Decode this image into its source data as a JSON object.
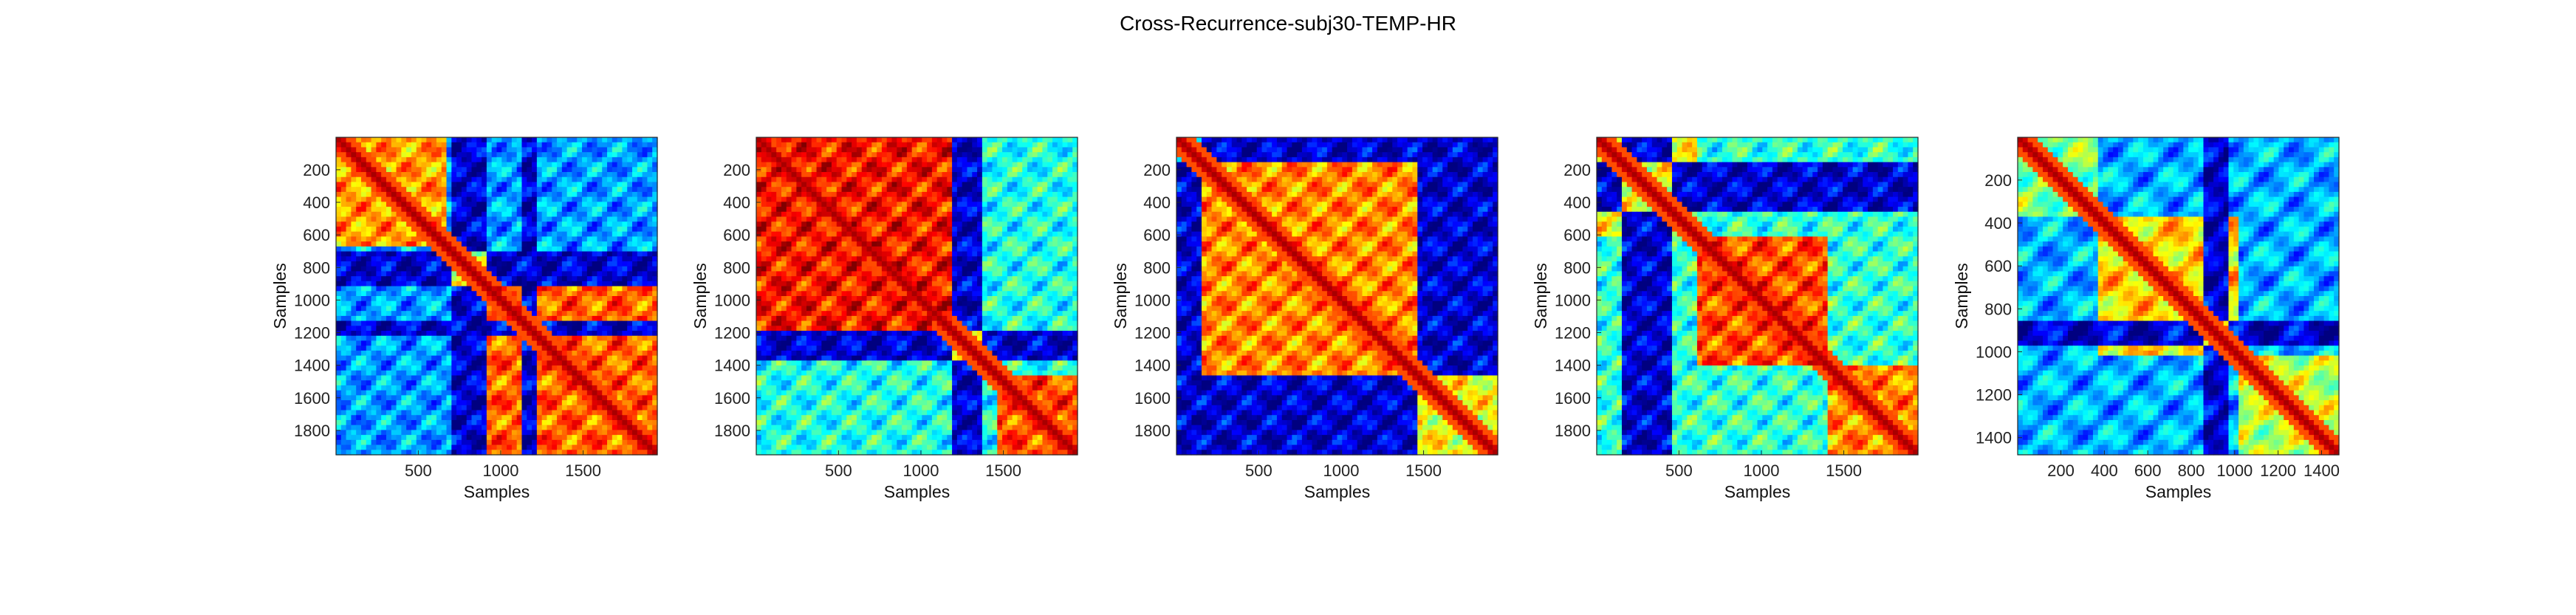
{
  "figure": {
    "title": "Cross-Recurrence-subj30-TEMP-HR"
  },
  "chart_data": [
    {
      "type": "heatmap",
      "xlabel": "Samples",
      "ylabel": "Samples",
      "xlim": [
        1,
        1950
      ],
      "ylim": [
        1,
        1950
      ],
      "x_ticks": [
        500,
        1000,
        1500
      ],
      "y_ticks": [
        200,
        400,
        600,
        800,
        1000,
        1200,
        1400,
        1600,
        1800
      ],
      "colormap": "jet",
      "blocks": [
        {
          "from": 0,
          "to": 650,
          "level": 0.72
        },
        {
          "from": 650,
          "to": 900,
          "level": 0.55
        },
        {
          "from": 900,
          "to": 1950,
          "level": 0.78
        }
      ],
      "low_bands": [
        [
          700,
          900
        ],
        [
          1100,
          1200
        ]
      ],
      "background_level": 0.28
    },
    {
      "type": "heatmap",
      "xlabel": "Samples",
      "ylabel": "Samples",
      "xlim": [
        1,
        1950
      ],
      "ylim": [
        1,
        1950
      ],
      "x_ticks": [
        500,
        1000,
        1500
      ],
      "y_ticks": [
        200,
        400,
        600,
        800,
        1000,
        1200,
        1400,
        1600,
        1800
      ],
      "colormap": "jet",
      "blocks": [
        {
          "from": 0,
          "to": 1170,
          "level": 0.86
        },
        {
          "from": 1170,
          "to": 1450,
          "level": 0.6
        },
        {
          "from": 1450,
          "to": 1950,
          "level": 0.8
        }
      ],
      "low_bands": [
        [
          1170,
          1370
        ]
      ],
      "background_level": 0.4
    },
    {
      "type": "heatmap",
      "xlabel": "Samples",
      "ylabel": "Samples",
      "xlim": [
        1,
        1950
      ],
      "ylim": [
        1,
        1950
      ],
      "x_ticks": [
        500,
        1000,
        1500
      ],
      "y_ticks": [
        200,
        400,
        600,
        800,
        1000,
        1200,
        1400,
        1600,
        1800
      ],
      "colormap": "jet",
      "blocks": [
        {
          "from": 150,
          "to": 1450,
          "level": 0.74
        },
        {
          "from": 1450,
          "to": 1950,
          "level": 0.62
        }
      ],
      "low_bands": [
        [
          1450,
          1950
        ],
        [
          0,
          150
        ]
      ],
      "background_level": 0.38
    },
    {
      "type": "heatmap",
      "xlabel": "Samples",
      "ylabel": "Samples",
      "xlim": [
        1,
        1950
      ],
      "ylim": [
        1,
        1950
      ],
      "x_ticks": [
        500,
        1000,
        1500
      ],
      "y_ticks": [
        200,
        400,
        600,
        800,
        1000,
        1200,
        1400,
        1600,
        1800
      ],
      "colormap": "jet",
      "blocks": [
        {
          "from": 0,
          "to": 600,
          "level": 0.62
        },
        {
          "from": 600,
          "to": 1400,
          "level": 0.8
        },
        {
          "from": 1400,
          "to": 1950,
          "level": 0.74
        }
      ],
      "low_bands": [
        [
          150,
          450
        ]
      ],
      "background_level": 0.42
    },
    {
      "type": "heatmap",
      "xlabel": "Samples",
      "ylabel": "Samples",
      "xlim": [
        1,
        1480
      ],
      "ylim": [
        1,
        1480
      ],
      "x_ticks": [
        200,
        400,
        600,
        800,
        1000,
        1200,
        1400
      ],
      "y_ticks": [
        200,
        400,
        600,
        800,
        1000,
        1200,
        1400
      ],
      "colormap": "jet",
      "blocks": [
        {
          "from": 0,
          "to": 350,
          "level": 0.5
        },
        {
          "from": 350,
          "to": 1000,
          "level": 0.66
        },
        {
          "from": 1000,
          "to": 1480,
          "level": 0.56
        }
      ],
      "low_bands": [
        [
          850,
          950
        ]
      ],
      "background_level": 0.3
    }
  ]
}
